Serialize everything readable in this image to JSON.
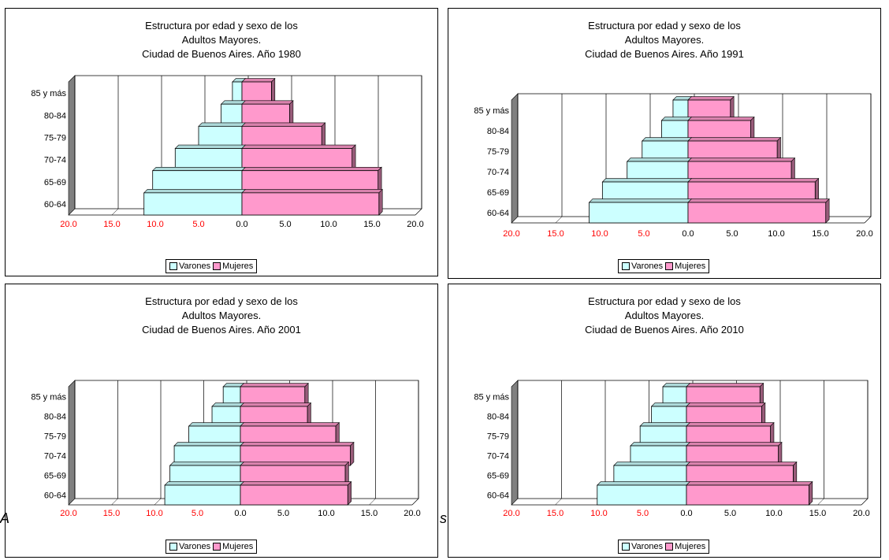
{
  "colors": {
    "varones": "#ccffff",
    "mujeres": "#ff99cc",
    "negative_tick": "#ff0000",
    "floor": "#808080"
  },
  "legend": {
    "varones": "Varones",
    "mujeres": "Mujeres"
  },
  "stray_text": {
    "left_fragment": "A",
    "right_fragment": "s"
  },
  "chart_data": [
    {
      "type": "bar",
      "orientation": "horizontal-pyramid",
      "title": [
        "Estructura por edad y sexo de los",
        "Adultos Mayores.",
        "Ciudad de Buenos Aires. Año 1980"
      ],
      "categories": [
        "60-64",
        "65-69",
        "70-74",
        "75-79",
        "80-84",
        "85 y más"
      ],
      "x_ticks": [
        "20.0",
        "15.0",
        "10.0",
        "5.0",
        "0.0",
        "5.0",
        "10.0",
        "15.0",
        "20.0"
      ],
      "xlim": [
        -20,
        20
      ],
      "grid": true,
      "legend_position": "bottom",
      "series": [
        {
          "name": "Varones",
          "values": [
            11.3,
            10.3,
            7.7,
            5.0,
            2.4,
            1.1
          ]
        },
        {
          "name": "Mujeres",
          "values": [
            15.8,
            15.7,
            12.7,
            9.2,
            5.5,
            3.4
          ]
        }
      ]
    },
    {
      "type": "bar",
      "orientation": "horizontal-pyramid",
      "title": [
        "Estructura por edad y sexo de los",
        "Adultos Mayores.",
        "Ciudad de Buenos Aires. Año 1991"
      ],
      "categories": [
        "60-64",
        "65-69",
        "70-74",
        "75-79",
        "80-84",
        "85 y más"
      ],
      "x_ticks": [
        "20.0",
        "15.0",
        "10.0",
        "5.0",
        "0.0",
        "5.0",
        "10.0",
        "15.0",
        "20.0"
      ],
      "xlim": [
        -20,
        20
      ],
      "grid": true,
      "legend_position": "bottom",
      "series": [
        {
          "name": "Varones",
          "values": [
            11.2,
            9.7,
            6.9,
            5.2,
            3.0,
            1.7
          ]
        },
        {
          "name": "Mujeres",
          "values": [
            15.6,
            14.4,
            11.7,
            10.1,
            7.1,
            4.8
          ]
        }
      ]
    },
    {
      "type": "bar",
      "orientation": "horizontal-pyramid",
      "title": [
        "Estructura por edad y sexo de los",
        "Adultos Mayores.",
        "Ciudad de Buenos Aires. Año 2001"
      ],
      "categories": [
        "60-64",
        "65-69",
        "70-74",
        "75-79",
        "80-84",
        "85 y más"
      ],
      "x_ticks": [
        "20.0",
        "15.0",
        "10.0",
        "5.0",
        "0.0",
        "5.0",
        "10.0",
        "15.0",
        "20.0"
      ],
      "xlim": [
        -20,
        20
      ],
      "grid": true,
      "legend_position": "bottom",
      "series": [
        {
          "name": "Varones",
          "values": [
            8.8,
            8.2,
            7.7,
            6.0,
            3.3,
            2.0
          ]
        },
        {
          "name": "Mujeres",
          "values": [
            12.5,
            12.2,
            12.8,
            11.1,
            7.8,
            7.5
          ]
        }
      ]
    },
    {
      "type": "bar",
      "orientation": "horizontal-pyramid",
      "title": [
        "Estructura por edad y sexo de los",
        "Adultos Mayores.",
        "Ciudad de Buenos Aires. Año 2010"
      ],
      "categories": [
        "60-64",
        "65-69",
        "70-74",
        "75-79",
        "80-84",
        "85 y más"
      ],
      "x_ticks": [
        "20.0",
        "15.0",
        "10.0",
        "5.0",
        "0.0",
        "5.0",
        "10.0",
        "15.0",
        "20.0"
      ],
      "xlim": [
        -20,
        20
      ],
      "grid": true,
      "legend_position": "bottom",
      "series": [
        {
          "name": "Varones",
          "values": [
            10.2,
            8.3,
            6.4,
            5.3,
            4.0,
            2.7
          ]
        },
        {
          "name": "Mujeres",
          "values": [
            14.0,
            12.2,
            10.5,
            9.6,
            8.6,
            8.4
          ]
        }
      ]
    }
  ]
}
